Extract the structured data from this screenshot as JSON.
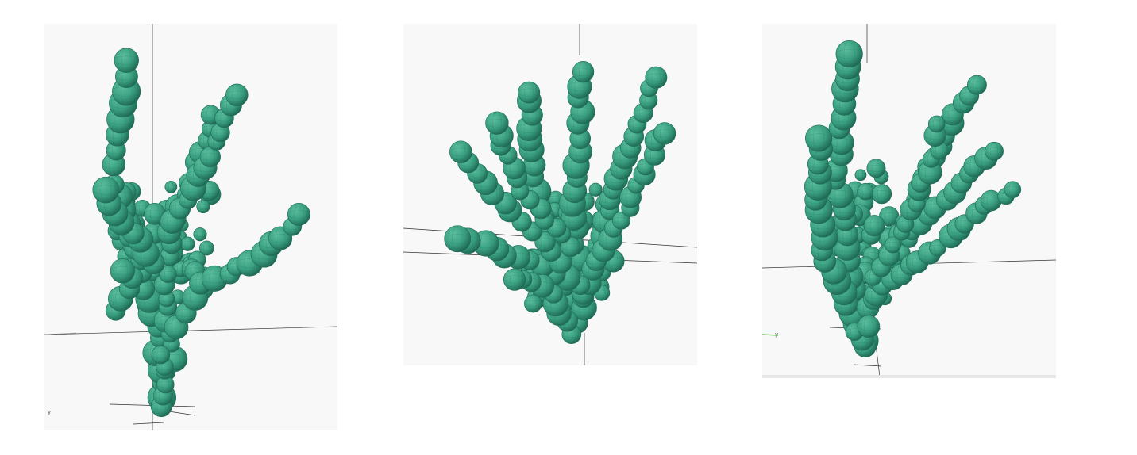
{
  "colors": {
    "background": "#ffffff",
    "viewport_bg": "#f8f8f8",
    "sphere_fill": "#3a9f80",
    "sphere_highlight": "#5cc0a0",
    "sphere_shadow": "#1f6b55",
    "facet_line": "#2a7f66",
    "axis_color": "#333333",
    "green_axis": "#2cc52c"
  },
  "viewports": [
    {
      "id": "front",
      "axis_tag": "y"
    },
    {
      "id": "top-oblique",
      "axis_tag": ""
    },
    {
      "id": "side",
      "axis_tag": "y"
    }
  ]
}
